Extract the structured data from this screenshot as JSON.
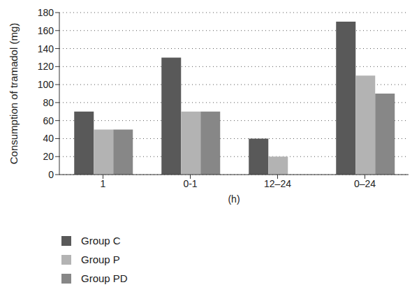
{
  "chart_data": {
    "type": "bar",
    "categories": [
      "1",
      "0-1",
      "12–24",
      "0–24"
    ],
    "series": [
      {
        "name": "Group C",
        "color": "#595959",
        "values": [
          70,
          130,
          40,
          170
        ]
      },
      {
        "name": "Group P",
        "color": "#b3b3b3",
        "values": [
          50,
          70,
          20,
          110
        ]
      },
      {
        "name": "Group PD",
        "color": "#878787",
        "values": [
          50,
          70,
          0,
          90
        ]
      }
    ],
    "x_label": "(h)",
    "y_label": "Consumption of tramadol (mg)",
    "ylim": [
      0,
      180
    ],
    "yticks": [
      0,
      20,
      40,
      60,
      80,
      100,
      120,
      140,
      160,
      180
    ],
    "grid": true,
    "legend": "bottom"
  }
}
